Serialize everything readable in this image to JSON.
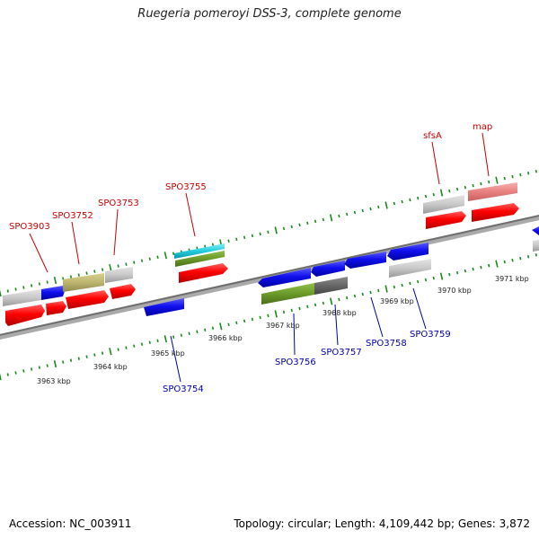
{
  "title": "Ruegeria pomeroyi DSS-3, complete genome",
  "footer": {
    "accession": "Accession: NC_003911",
    "summary": "Topology: circular; Length: 4,109,442 bp; Genes: 3,872"
  },
  "ruler_labels": [
    "3963 kbp",
    "3964 kbp",
    "3965 kbp",
    "3966 kbp",
    "3967 kbp",
    "3968 kbp",
    "3969 kbp",
    "3970 kbp",
    "3971 kbp"
  ],
  "gene_labels_forward": [
    "SPO3903",
    "SPO3752",
    "SPO3753",
    "SPO3755",
    "sfsA",
    "map"
  ],
  "gene_labels_reverse": [
    "SPO3754",
    "SPO3756",
    "SPO3757",
    "SPO3758",
    "SPO3759"
  ],
  "colors": {
    "forward_label": "#cc0000",
    "reverse_label": "#0000aa",
    "forward_gene": "#ff0000",
    "reverse_gene": "#0000ee",
    "tick": "#1a8a1a",
    "backbone": "#777777"
  }
}
